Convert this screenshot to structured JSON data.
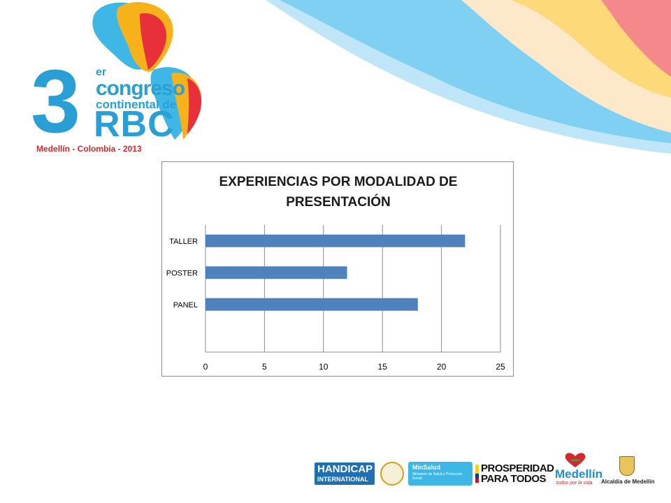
{
  "logo": {
    "number": "3",
    "superscript": "er",
    "line1": "congreso",
    "line2": "continental de",
    "acronym": "RBC",
    "footer": "Medellín - Colombia - 2013"
  },
  "chart_data": {
    "type": "bar",
    "orientation": "horizontal",
    "title_lines": [
      "EXPERIENCIAS  POR MODALIDAD DE",
      "PRESENTACIÓN"
    ],
    "categories": [
      "TALLER",
      "POSTER",
      "PANEL"
    ],
    "values": [
      22,
      12,
      18
    ],
    "xlim": [
      0,
      25
    ],
    "xticks": [
      "0",
      "5",
      "10",
      "15",
      "20",
      "25"
    ],
    "grid": true,
    "legend": "none",
    "bar_color": "#4f81bd"
  },
  "footer_logos": {
    "handicap_line1": "HANDICAP",
    "handicap_line2": "INTERNATIONAL",
    "minsalud_name": "MinSalud",
    "minsalud_sub": "Ministerio de Salud y Protección Social",
    "prosperidad_line1": "PROSPERIDAD",
    "prosperidad_line2": "PARA TODOS",
    "medellin_word": "Medellín",
    "medellin_sub": "todos por la vida",
    "alcaldia": "Alcaldía de Medellín"
  }
}
